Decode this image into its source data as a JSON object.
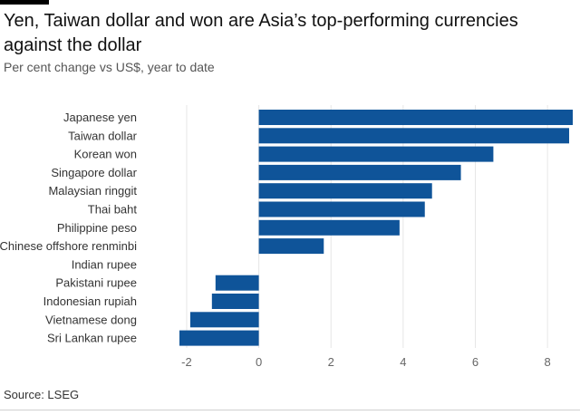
{
  "title": "Yen, Taiwan dollar and won are Asia’s top-performing currencies against the dollar",
  "subtitle": "Per cent change vs US$, year to date",
  "source": "Source: LSEG",
  "colors": {
    "bar": "#0f5499",
    "grid": "#e6e6e6",
    "tick": "#666666"
  },
  "chart_data": {
    "type": "bar",
    "orientation": "horizontal",
    "title": "Yen, Taiwan dollar and won are Asia’s top-performing currencies against the dollar",
    "subtitle": "Per cent change vs US$, year to date",
    "xlabel": "",
    "ylabel": "",
    "xlim": [
      -2.2,
      8.7
    ],
    "xticks": [
      -2,
      0,
      2,
      4,
      6,
      8
    ],
    "xtick_labels": [
      "-2",
      "0",
      "2",
      "4",
      "6",
      "8"
    ],
    "grid": true,
    "categories": [
      "Japanese yen",
      "Taiwan dollar",
      "Korean won",
      "Singapore dollar",
      "Malaysian ringgit",
      "Thai baht",
      "Philippine peso",
      "Chinese offshore renminbi",
      "Indian rupee",
      "Pakistani rupee",
      "Indonesian rupiah",
      "Vietnamese dong",
      "Sri Lankan rupee"
    ],
    "values": [
      8.7,
      8.6,
      6.5,
      5.6,
      4.8,
      4.6,
      3.9,
      1.8,
      0.0,
      -1.2,
      -1.3,
      -1.9,
      -2.2
    ]
  }
}
